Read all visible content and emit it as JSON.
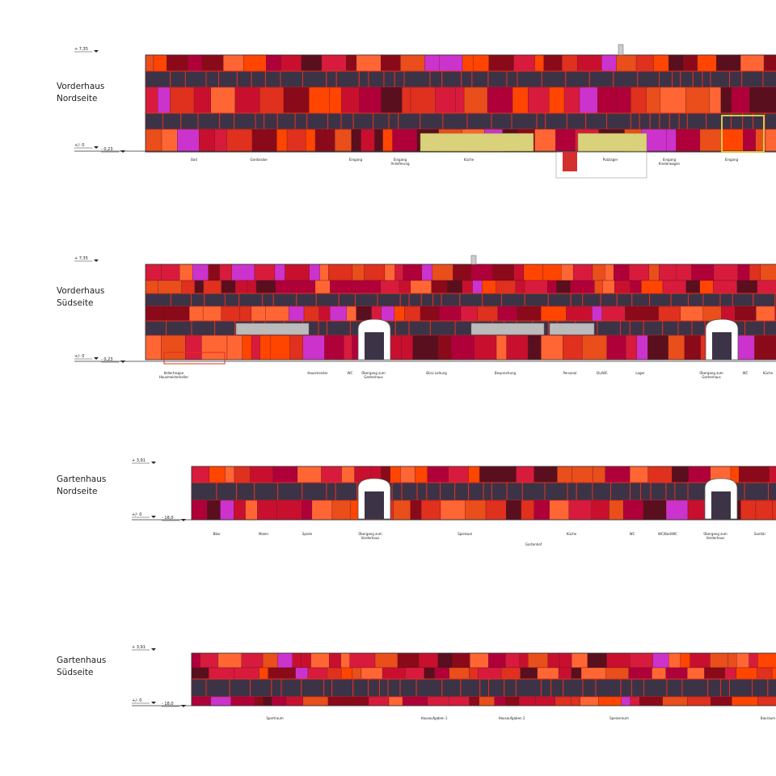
{
  "sections": [
    {
      "title": [
        "Vorderhaus",
        "Nordseite"
      ],
      "levels": {
        "top": "+ 7,35",
        "zero": "+/- 0",
        "ground": "- 0,23"
      },
      "rooms": [
        [
          "Bad"
        ],
        [
          "Gardarobe"
        ],
        [
          "Eingang"
        ],
        [
          "Eingang",
          "Anlieferung"
        ],
        [
          "Küche"
        ],
        [
          "Putzlager"
        ],
        [
          "Eingang",
          "Kinderwagen"
        ],
        [
          "Eingang"
        ]
      ]
    },
    {
      "title": [
        "Vorderhaus",
        "Südseite"
      ],
      "levels": {
        "top": "+ 7,35",
        "zero": "+/- 0",
        "ground": "- 0,23"
      },
      "rooms": [
        [
          "Kellertreppe",
          "Hausmeisterkeller"
        ],
        [
          "Hausmeister"
        ],
        [
          "WC"
        ],
        [
          "Übergang zum",
          "Gartenhaus"
        ],
        [
          "Büro Leitung"
        ],
        [
          "Besprechung"
        ],
        [
          "Personal"
        ],
        [
          "Du/WC"
        ],
        [
          "Lager"
        ],
        [
          "Übergang zum",
          "Gartenhaus"
        ],
        [
          "WC"
        ],
        [
          "Küche"
        ]
      ]
    },
    {
      "title": [
        "Gartenhaus",
        "Nordseite"
      ],
      "levels": {
        "top": "+ 3,91",
        "zero": "+/- 0",
        "ground": "- 18,0"
      },
      "rooms": [
        [
          "Bibo"
        ],
        [
          "Malen"
        ],
        [
          "Spiele"
        ],
        [
          "Übergang zum",
          "Vorderhaus"
        ],
        [
          "Gartenhof"
        ],
        [
          "Spielsaal"
        ],
        [
          "Küche"
        ],
        [
          "WC"
        ],
        [
          "WC/Bad/WC"
        ],
        [
          "Übergang zum",
          "Vorderhaus"
        ],
        [
          "Sanitär"
        ]
      ]
    },
    {
      "title": [
        "Gartenhaus",
        "Südseite"
      ],
      "levels": {
        "top": "+ 3,91",
        "zero": "+/- 0",
        "ground": "- 18,0"
      },
      "rooms": [
        [
          "Sportraum"
        ],
        [
          "Hausaufgaben 1"
        ],
        [
          "Hausaufgaben 2"
        ],
        [
          "Speiseraum"
        ],
        [
          "Bauraum"
        ]
      ]
    }
  ]
}
